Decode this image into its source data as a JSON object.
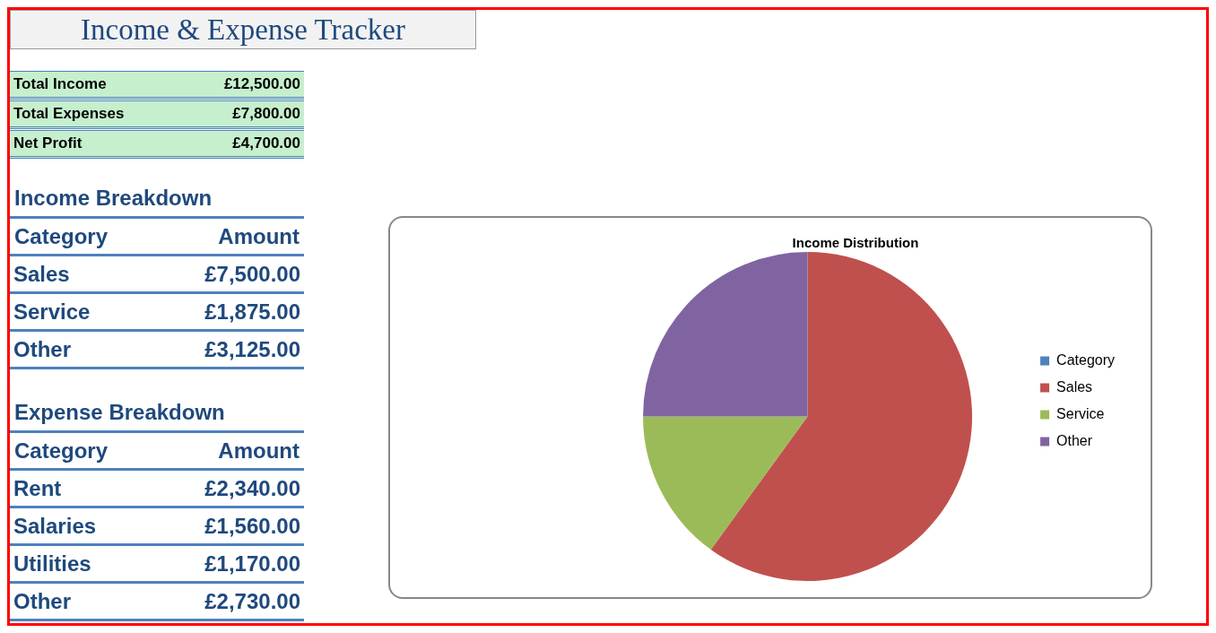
{
  "chart_data": [
    {
      "type": "other",
      "title": "Income & Expense Tracker"
    },
    {
      "type": "other",
      "categories": [
        "Total Income",
        "Total Expenses",
        "Net Profit"
      ],
      "value_labels": [
        "£12,500.00",
        "£7,800.00",
        "£4,700.00"
      ],
      "color": "#c6efce"
    },
    {
      "type": "other",
      "title": "Income Breakdown",
      "annotations": [
        "Category",
        "Amount"
      ],
      "categories": [
        "Sales",
        "Service",
        "Other"
      ],
      "value_labels": [
        "£7,500.00",
        "£1,875.00",
        "£3,125.00"
      ]
    },
    {
      "type": "other",
      "title": "Expense Breakdown",
      "annotations": [
        "Category",
        "Amount"
      ],
      "categories": [
        "Rent",
        "Salaries",
        "Utilities",
        "Other"
      ],
      "value_labels": [
        "£2,340.00",
        "£1,560.00",
        "£1,170.00",
        "£2,730.00"
      ]
    },
    {
      "type": "pie",
      "title": "Income Distribution",
      "categories": [
        "Category",
        "Sales",
        "Service",
        "Other"
      ],
      "values": [
        null,
        60,
        15,
        25
      ],
      "colors": [
        "#4f81bd",
        "#c0504d",
        "#9bbb59",
        "#8064a2"
      ],
      "legend": "right"
    }
  ]
}
